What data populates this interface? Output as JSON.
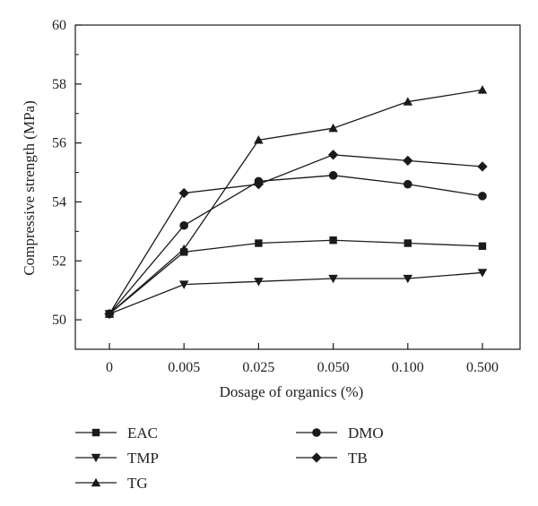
{
  "chart_data": {
    "type": "line",
    "title": "",
    "xlabel": "Dosage of organics (%)",
    "ylabel": "Compressive strength (MPa)",
    "categories": [
      "0",
      "0.005",
      "0.025",
      "0.050",
      "0.100",
      "0.500"
    ],
    "ylim": [
      49,
      60
    ],
    "yticks": [
      "50",
      "52",
      "54",
      "56",
      "58",
      "60"
    ],
    "grid": false,
    "legend_placement": "below",
    "series": [
      {
        "name": "EAC",
        "marker": "square",
        "values": [
          50.2,
          52.3,
          52.6,
          52.7,
          52.6,
          52.5
        ]
      },
      {
        "name": "TMP",
        "marker": "triangle-down",
        "values": [
          50.2,
          51.2,
          51.3,
          51.4,
          51.4,
          51.6
        ]
      },
      {
        "name": "TG",
        "marker": "triangle-up",
        "values": [
          50.2,
          52.4,
          56.1,
          56.5,
          57.4,
          57.8
        ]
      },
      {
        "name": "DMO",
        "marker": "circle",
        "values": [
          50.2,
          53.2,
          54.7,
          54.9,
          54.6,
          54.2
        ]
      },
      {
        "name": "TB",
        "marker": "diamond",
        "values": [
          50.2,
          54.3,
          54.6,
          55.6,
          55.4,
          55.2
        ]
      }
    ],
    "line_color": "#1a1a1a"
  }
}
